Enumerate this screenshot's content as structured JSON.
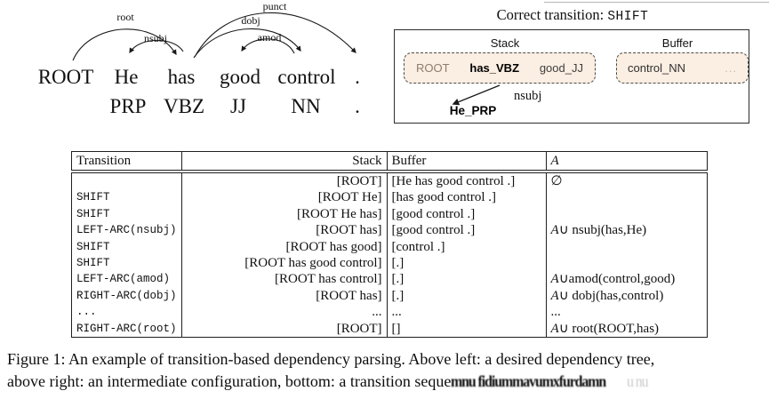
{
  "tree": {
    "words": [
      "ROOT",
      "He",
      "has",
      "good",
      "control",
      "."
    ],
    "pos": [
      "PRP",
      "VBZ",
      "JJ",
      "NN",
      "."
    ],
    "arcs": [
      {
        "label": "root",
        "from": "ROOT",
        "to": "has"
      },
      {
        "label": "nsubj",
        "from": "has",
        "to": "He"
      },
      {
        "label": "punct",
        "from": "has",
        "to": "."
      },
      {
        "label": "dobj",
        "from": "has",
        "to": "control"
      },
      {
        "label": "amod",
        "from": "control",
        "to": "good"
      }
    ]
  },
  "config_panel": {
    "title_prefix": "Correct transition: ",
    "title_transition": "SHIFT",
    "stack_label": "Stack",
    "buffer_label": "Buffer",
    "stack_items": [
      "ROOT",
      "has_VBZ",
      "good_JJ"
    ],
    "buffer_items": [
      "control_NN",
      "..."
    ],
    "arc_label": "nsubj",
    "pending_item": "He_PRP",
    "colors": {
      "box_fill": "#fbeee2",
      "dash_border": "#4a4a4a",
      "root_text": "#8d7f70",
      "faded": "#c4bbb2"
    }
  },
  "table": {
    "headers": {
      "transition": "Transition",
      "stack": "Stack",
      "buffer": "Buffer",
      "arcs": "A"
    },
    "rows": [
      {
        "t": "",
        "s": "[ROOT]",
        "b": "[He has good control .]",
        "aI": "",
        "aR": "∅"
      },
      {
        "t": "SHIFT",
        "s": "[ROOT He]",
        "b": "[has good control .]",
        "aI": "",
        "aR": ""
      },
      {
        "t": "SHIFT",
        "s": "[ROOT He has]",
        "b": "[good control .]",
        "aI": "",
        "aR": ""
      },
      {
        "t": "LEFT-ARC(nsubj)",
        "s": "[ROOT has]",
        "b": "[good control .]",
        "aI": "A",
        "aR": "∪ nsubj(has,He)"
      },
      {
        "t": "SHIFT",
        "s": "[ROOT has good]",
        "b": "[control .]",
        "aI": "",
        "aR": ""
      },
      {
        "t": "SHIFT",
        "s": "[ROOT has good control]",
        "b": "[.]",
        "aI": "",
        "aR": ""
      },
      {
        "t": "LEFT-ARC(amod)",
        "s": "[ROOT has control]",
        "b": "[.]",
        "aI": "A",
        "aR": "∪amod(control,good)"
      },
      {
        "t": "RIGHT-ARC(dobj)",
        "s": "[ROOT has]",
        "b": "[.]",
        "aI": "A",
        "aR": "∪ dobj(has,control)"
      },
      {
        "t": "...",
        "s": "...",
        "b": "...",
        "aI": "",
        "aR": "..."
      },
      {
        "t": "RIGHT-ARC(root)",
        "s": "[ROOT]",
        "b": "[]",
        "aI": "A",
        "aR": "∪ root(ROOT,has)"
      }
    ]
  },
  "caption": {
    "line1": "Figure 1: An example of transition-based dependency parsing. Above left: a desired dependency tree,",
    "line2": "above right: an intermediate configuration, bottom: a transition seque",
    "garbled": "mnu fidiummavumxfurdamn",
    "garbled_faint": "u nu"
  }
}
